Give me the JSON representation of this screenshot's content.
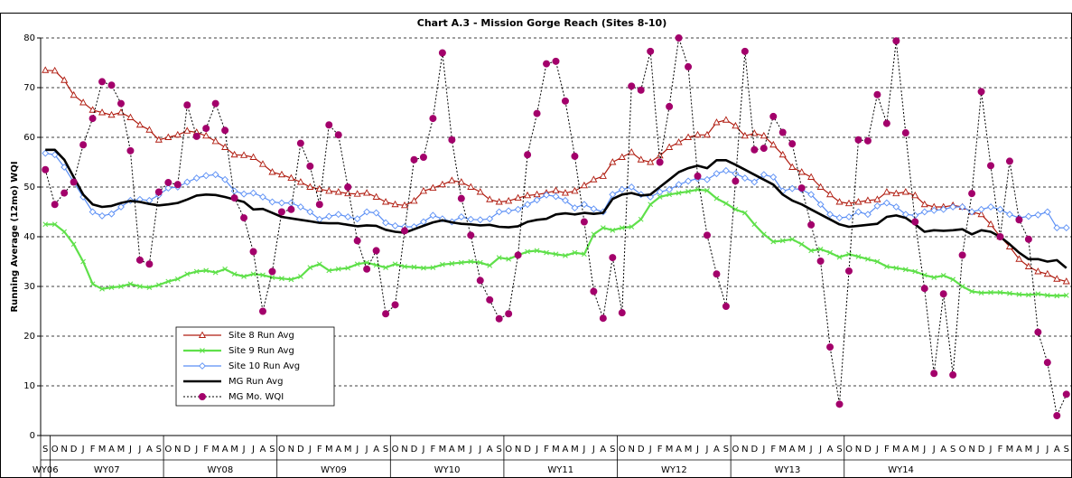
{
  "chart_data": {
    "type": "line",
    "title": "Chart A.3 - Mission Gorge Reach (Sites 8-10)",
    "y_label": "Running Average (12mo) WQI",
    "ylim": [
      0,
      80
    ],
    "yticks": [
      0,
      10,
      20,
      30,
      40,
      50,
      60,
      70,
      80
    ],
    "grid": true,
    "legend": "lower-left",
    "categories": [
      "S",
      "O",
      "N",
      "D",
      "J",
      "F",
      "M",
      "A",
      "M",
      "J",
      "J",
      "A",
      "S",
      "O",
      "N",
      "D",
      "J",
      "F",
      "M",
      "A",
      "M",
      "J",
      "J",
      "A",
      "S",
      "O",
      "N",
      "D",
      "J",
      "F",
      "M",
      "A",
      "M",
      "J",
      "J",
      "A",
      "S",
      "O",
      "N",
      "D",
      "J",
      "F",
      "M",
      "A",
      "M",
      "J",
      "J",
      "A",
      "S",
      "O",
      "N",
      "D",
      "J",
      "F",
      "M",
      "A",
      "M",
      "J",
      "J",
      "A",
      "S",
      "O",
      "N",
      "D",
      "J",
      "F",
      "M",
      "A",
      "M",
      "J",
      "J",
      "A",
      "S",
      "O",
      "N",
      "D",
      "J",
      "F",
      "M",
      "A",
      "M",
      "J",
      "J",
      "A",
      "S",
      "O",
      "N",
      "D",
      "J",
      "F",
      "M",
      "A",
      "M",
      "J",
      "J",
      "A",
      "S",
      "O",
      "N",
      "D",
      "J",
      "F",
      "M",
      "A",
      "M",
      "J",
      "J",
      "A",
      "S"
    ],
    "groups": [
      "WY06",
      "WY07",
      "WY08",
      "WY09",
      "WY10",
      "WY11",
      "WY12",
      "WY13",
      "WY14"
    ],
    "series": [
      {
        "name": "Site 8 Run Avg",
        "color": "#b01c10",
        "marker": "triangle",
        "width": 1.2,
        "values": [
          73.5,
          73.4,
          71.5,
          68.5,
          67,
          65.5,
          65,
          64.5,
          65,
          64,
          62.5,
          61.5,
          59.5,
          60,
          60.5,
          61.3,
          61,
          60.3,
          59.2,
          58,
          56.5,
          56.4,
          56,
          54.6,
          53,
          52.5,
          51.8,
          51,
          50,
          49.6,
          49.2,
          49,
          48.7,
          48.6,
          48.8,
          48,
          47,
          46.5,
          46.3,
          47.2,
          49.2,
          49.8,
          50.5,
          51.3,
          51,
          50,
          49,
          47.5,
          47,
          47.2,
          47.8,
          48.3,
          48.5,
          48.8,
          49.3,
          48.8,
          49.2,
          50.3,
          51.5,
          52.2,
          55,
          56,
          57,
          55.5,
          55,
          56.3,
          58,
          59,
          60,
          60.5,
          60.5,
          63,
          63.5,
          62.3,
          60.3,
          60.8,
          60.3,
          58.5,
          56.5,
          54,
          53,
          52,
          50,
          48.5,
          47,
          46.7,
          47,
          47.3,
          47.5,
          49,
          48.7,
          49,
          48.3,
          46.5,
          46,
          46,
          46.3,
          46,
          45,
          44.5,
          42.5,
          40,
          38,
          35.5,
          34,
          33,
          32.5,
          31.5,
          31
        ]
      },
      {
        "name": "Site 9 Run Avg",
        "color": "#5fe04a",
        "marker": "x",
        "width": 2.2,
        "values": [
          42.5,
          42.5,
          41,
          38.5,
          35,
          30.5,
          29.5,
          29.8,
          30,
          30.5,
          30,
          29.8,
          30.3,
          31,
          31.5,
          32.5,
          33,
          33.2,
          32.8,
          33.5,
          32.5,
          32,
          32.5,
          32.3,
          31.8,
          31.6,
          31.4,
          32,
          33.8,
          34.5,
          33.2,
          33.5,
          33.7,
          34.5,
          34.8,
          34.3,
          33.8,
          34.5,
          34,
          33.9,
          33.7,
          33.8,
          34.4,
          34.6,
          34.8,
          35,
          34.8,
          34.2,
          35.8,
          35.5,
          36.3,
          37,
          37.2,
          36.8,
          36.5,
          36.2,
          36.8,
          36.5,
          40.5,
          41.8,
          41.3,
          41.8,
          42,
          43.5,
          46.5,
          48,
          48.5,
          48.8,
          49.1,
          49.5,
          49.3,
          47.7,
          46.7,
          45.5,
          44.8,
          42.5,
          40.5,
          39,
          39.2,
          39.5,
          38.5,
          37.2,
          37.5,
          36.8,
          35.9,
          36.5,
          36,
          35.5,
          35,
          34,
          33.7,
          33.4,
          33,
          32.3,
          31.8,
          32.2,
          31.4,
          30,
          29,
          28.7,
          28.8,
          28.8,
          28.6,
          28.4,
          28.3,
          28.5,
          28.2,
          28.1,
          28.2
        ]
      },
      {
        "name": "Site 10 Run Avg",
        "color": "#5b8ff5",
        "marker": "diamond",
        "width": 1.2,
        "values": [
          56.8,
          56.5,
          54,
          51,
          48,
          45,
          44.2,
          44.6,
          46,
          47.3,
          47.5,
          47.3,
          48.4,
          49.8,
          50,
          51,
          51.8,
          52.3,
          52.5,
          51.5,
          49.2,
          48.6,
          48.8,
          48,
          47,
          46.8,
          46.8,
          46,
          45,
          43.5,
          44.1,
          44.5,
          44,
          43.6,
          45,
          44.8,
          42.8,
          42.2,
          42,
          42,
          43,
          44.3,
          43.6,
          43,
          44,
          43.5,
          43.4,
          43.6,
          45,
          45.2,
          45.5,
          46.5,
          47.4,
          48.4,
          48.1,
          47.3,
          45.8,
          46.5,
          45.6,
          45,
          48.5,
          49.5,
          50,
          48.5,
          48,
          49,
          49.5,
          50.5,
          51.2,
          51.7,
          51.5,
          52.7,
          53.3,
          52.7,
          51.8,
          51,
          52.5,
          52,
          49.2,
          49.7,
          49.5,
          48.5,
          46.5,
          44.5,
          43.8,
          44,
          45,
          44.5,
          46.2,
          46.8,
          46,
          44.5,
          44.3,
          45,
          45.3,
          45.5,
          46,
          46,
          45,
          45.5,
          46,
          45.5,
          44.5,
          43.8,
          44.1,
          44.4,
          45,
          41.8,
          41.8
        ]
      },
      {
        "name": "MG Run Avg",
        "color": "#000000",
        "marker": "none",
        "width": 2.6,
        "values": [
          57.5,
          57.5,
          55.5,
          52,
          48.5,
          46.5,
          46,
          46.2,
          46.8,
          47.2,
          47,
          46.6,
          46.3,
          46.5,
          46.8,
          47.5,
          48.3,
          48.5,
          48.4,
          48,
          47.5,
          47,
          45.5,
          45.6,
          44.8,
          44,
          43.7,
          43.4,
          43.1,
          42.8,
          42.7,
          42.7,
          42.4,
          42.1,
          42.3,
          42.2,
          41.4,
          41,
          40.8,
          41.5,
          42.2,
          42.9,
          43.3,
          42.9,
          42.6,
          42.5,
          42.3,
          42.4,
          42,
          41.9,
          42.1,
          43,
          43.4,
          43.6,
          44.5,
          44.7,
          44.5,
          44.8,
          44.6,
          44.8,
          47.6,
          48.5,
          48.8,
          48.3,
          48.5,
          50,
          51.5,
          53,
          53.8,
          54.3,
          53.8,
          55.4,
          55.4,
          54.5,
          53.5,
          52.5,
          51.5,
          50.5,
          48.5,
          47.3,
          46.5,
          45.5,
          44.5,
          43.5,
          42.5,
          42,
          42.2,
          42.4,
          42.6,
          44,
          44.3,
          43.8,
          42.5,
          41,
          41.3,
          41.2,
          41.3,
          41.5,
          40.5,
          41.3,
          41,
          40,
          38.5,
          36.8,
          35.5,
          35.5,
          35,
          35.3,
          33.7
        ]
      },
      {
        "name": "MG Mo. WQI",
        "color": "#000000",
        "marker": "circle",
        "marker_color": "#a3006b",
        "width": 1,
        "dash": "dotted",
        "values": [
          53.5,
          46.5,
          48.8,
          51,
          58.5,
          63.8,
          71.2,
          70.5,
          66.8,
          57.3,
          35.3,
          34.5,
          49,
          50.9,
          50.5,
          66.5,
          60.2,
          61.8,
          66.8,
          61.4,
          47.8,
          43.8,
          37,
          25,
          33,
          45,
          45.5,
          58.8,
          54.2,
          46.5,
          62.5,
          60.5,
          50,
          39.2,
          33.5,
          37.2,
          24.5,
          26.3,
          41.2,
          55.5,
          56,
          63.8,
          77,
          59.5,
          47.7,
          40.3,
          31.2,
          27.3,
          23.5,
          24.5,
          36.3,
          56.5,
          64.8,
          74.8,
          75.3,
          67.3,
          56.2,
          43,
          29,
          23.6,
          35.8,
          24.7,
          70.3,
          69.5,
          77.3,
          55,
          66.2,
          80,
          74.2,
          52.2,
          40.3,
          32.5,
          26,
          51.2,
          77.3,
          57.5,
          57.8,
          64.2,
          61,
          58.7,
          49.8,
          42.4,
          35.1,
          17.8,
          6.3,
          33.1,
          59.5,
          59.3,
          68.6,
          62.8,
          79.4,
          60.9,
          43,
          29.6,
          12.5,
          28.5,
          12.2,
          36.3,
          48.7,
          69.2,
          54.3,
          40,
          55.2,
          43.4,
          39.5,
          20.8,
          14.7,
          4,
          8.3
        ]
      }
    ]
  }
}
